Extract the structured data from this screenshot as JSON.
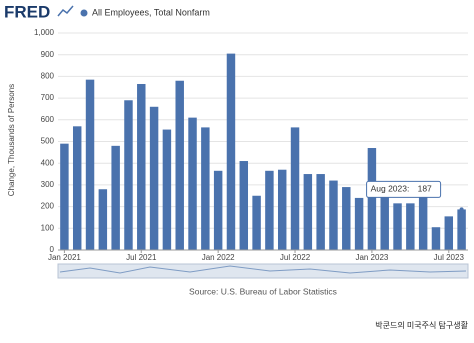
{
  "logo": "FRED",
  "watermark": "박쿤드의 미국주식 탐구생활",
  "chart_data": {
    "type": "bar",
    "y_label": "Change, Thousands of Persons",
    "source": "Source: U.S. Bureau of Labor Statistics",
    "categories": [
      "Jan 2021",
      null,
      null,
      null,
      null,
      null,
      "Jul 2021",
      null,
      null,
      null,
      null,
      null,
      "Jan 2022",
      null,
      null,
      null,
      null,
      null,
      "Jul 2022",
      null,
      null,
      null,
      null,
      null,
      "Jan 2023",
      null,
      null,
      null,
      null,
      null,
      "Jul 2023",
      null
    ],
    "series": [
      {
        "name": "All Employees, Total Nonfarm",
        "color": "#4a72ad",
        "values": [
          490,
          570,
          785,
          280,
          480,
          690,
          765,
          660,
          555,
          780,
          610,
          565,
          365,
          905,
          410,
          250,
          365,
          370,
          565,
          350,
          350,
          320,
          290,
          240,
          470,
          250,
          215,
          215,
          280,
          105,
          155,
          187
        ]
      }
    ],
    "ylim": [
      0,
      1000
    ],
    "yticks": [
      0,
      100,
      200,
      300,
      400,
      500,
      600,
      700,
      800,
      900,
      {
        "value": 1000,
        "label": "1,000"
      }
    ],
    "grid": true,
    "tooltip": {
      "label": "Aug 2023:",
      "index": 31
    }
  }
}
